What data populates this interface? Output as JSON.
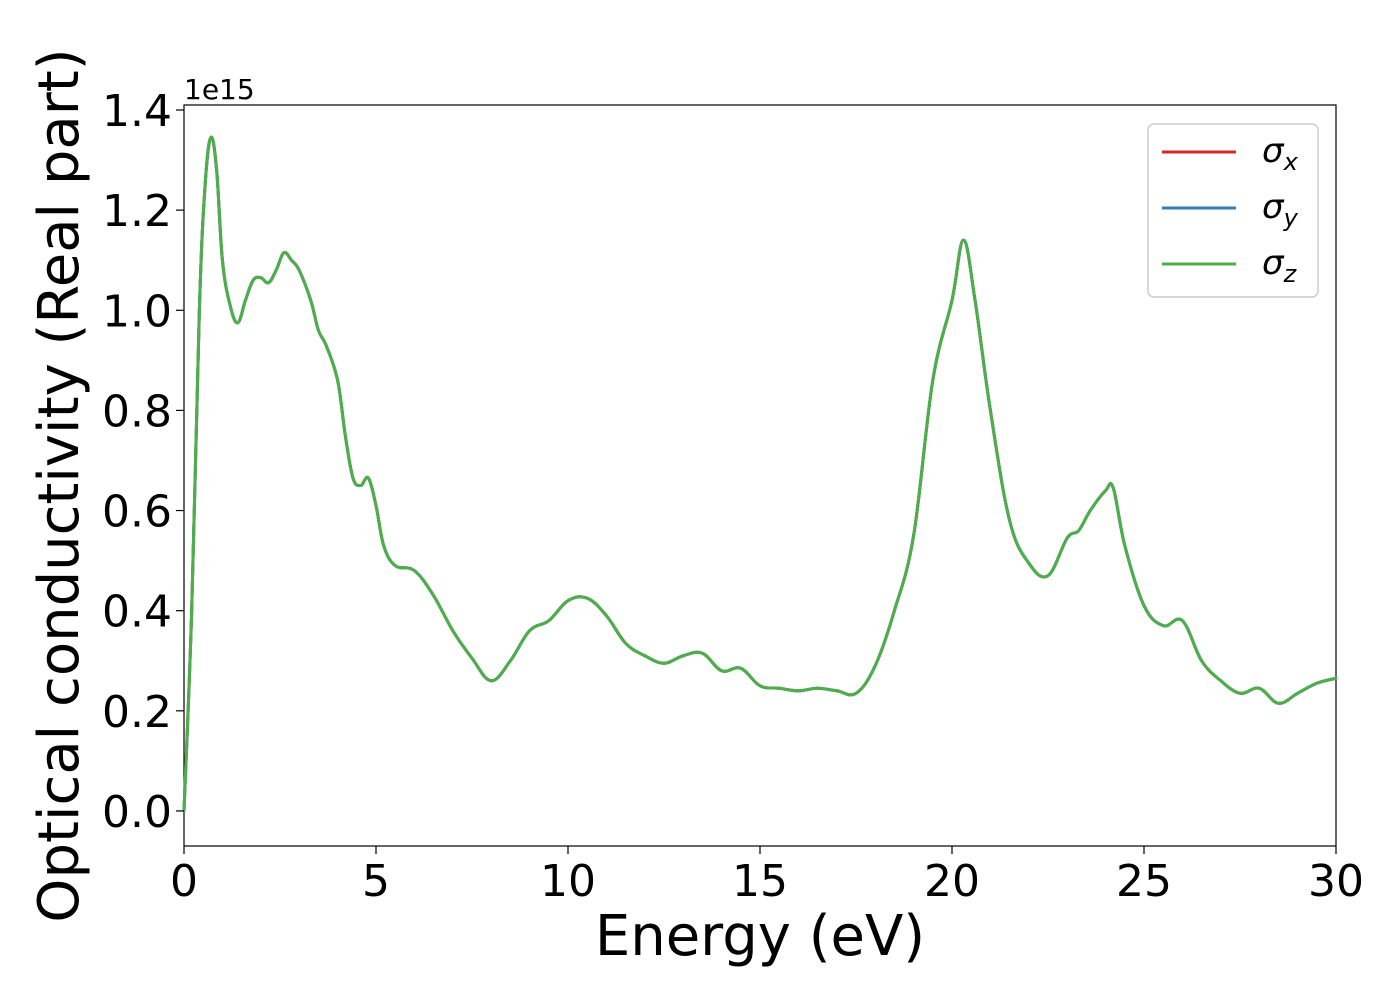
{
  "chart_data": {
    "type": "line",
    "xlabel": "Energy (eV)",
    "ylabel": "Optical conductivity (Real part)",
    "y_offset_text": "1e15",
    "y_scale_factor": 1000000000000000.0,
    "xlim": [
      0,
      30
    ],
    "ylim": [
      -0.07,
      1.41
    ],
    "x_ticks": [
      0,
      5,
      10,
      15,
      20,
      25,
      30
    ],
    "x_tick_labels": [
      "0",
      "5",
      "10",
      "15",
      "20",
      "25",
      "30"
    ],
    "y_ticks": [
      0.0,
      0.2,
      0.4,
      0.6,
      0.8,
      1.0,
      1.2,
      1.4
    ],
    "y_tick_labels": [
      "0.0",
      "0.2",
      "0.4",
      "0.6",
      "0.8",
      "1.0",
      "1.2",
      "1.4"
    ],
    "grid": false,
    "legend_position": "top-right",
    "x": [
      0,
      0.2,
      0.4,
      0.55,
      0.7,
      0.85,
      1.0,
      1.2,
      1.4,
      1.6,
      1.8,
      2.0,
      2.2,
      2.4,
      2.6,
      2.8,
      3.0,
      3.3,
      3.5,
      3.7,
      4.0,
      4.2,
      4.4,
      4.6,
      4.8,
      5.0,
      5.2,
      5.5,
      6.0,
      6.5,
      7.0,
      7.5,
      8.0,
      8.5,
      9.0,
      9.5,
      10.0,
      10.5,
      11.0,
      11.5,
      12.0,
      12.5,
      13.0,
      13.5,
      14.0,
      14.5,
      15.0,
      15.5,
      16.0,
      16.5,
      17.0,
      17.5,
      18.0,
      18.5,
      19.0,
      19.5,
      20.0,
      20.3,
      20.6,
      21.0,
      21.5,
      22.0,
      22.5,
      23.0,
      23.3,
      23.6,
      24.0,
      24.2,
      24.5,
      25.0,
      25.5,
      26.0,
      26.5,
      27.0,
      27.5,
      28.0,
      28.5,
      29.0,
      29.5,
      30.0
    ],
    "series": [
      {
        "name": "σx",
        "color": "#d62728",
        "values": [
          0.0,
          0.4,
          1.0,
          1.25,
          1.345,
          1.28,
          1.1,
          1.01,
          0.975,
          1.02,
          1.06,
          1.065,
          1.055,
          1.08,
          1.115,
          1.1,
          1.08,
          1.02,
          0.96,
          0.93,
          0.86,
          0.75,
          0.665,
          0.65,
          0.665,
          0.61,
          0.53,
          0.49,
          0.48,
          0.43,
          0.36,
          0.305,
          0.26,
          0.3,
          0.36,
          0.38,
          0.42,
          0.425,
          0.39,
          0.335,
          0.31,
          0.295,
          0.31,
          0.315,
          0.28,
          0.285,
          0.25,
          0.245,
          0.24,
          0.245,
          0.24,
          0.235,
          0.29,
          0.4,
          0.55,
          0.86,
          1.02,
          1.14,
          1.02,
          0.8,
          0.58,
          0.495,
          0.47,
          0.545,
          0.56,
          0.6,
          0.64,
          0.645,
          0.53,
          0.41,
          0.37,
          0.38,
          0.3,
          0.26,
          0.235,
          0.245,
          0.215,
          0.235,
          0.255,
          0.265
        ]
      },
      {
        "name": "σy",
        "color": "#377eb8",
        "values": [
          0.0,
          0.4,
          1.0,
          1.25,
          1.345,
          1.28,
          1.1,
          1.01,
          0.975,
          1.02,
          1.06,
          1.065,
          1.055,
          1.08,
          1.115,
          1.1,
          1.08,
          1.02,
          0.96,
          0.93,
          0.86,
          0.75,
          0.665,
          0.65,
          0.665,
          0.61,
          0.53,
          0.49,
          0.48,
          0.43,
          0.36,
          0.305,
          0.26,
          0.3,
          0.36,
          0.38,
          0.42,
          0.425,
          0.39,
          0.335,
          0.31,
          0.295,
          0.31,
          0.315,
          0.28,
          0.285,
          0.25,
          0.245,
          0.24,
          0.245,
          0.24,
          0.235,
          0.29,
          0.4,
          0.55,
          0.86,
          1.02,
          1.14,
          1.02,
          0.8,
          0.58,
          0.495,
          0.47,
          0.545,
          0.56,
          0.6,
          0.64,
          0.645,
          0.53,
          0.41,
          0.37,
          0.38,
          0.3,
          0.26,
          0.235,
          0.245,
          0.215,
          0.235,
          0.255,
          0.265
        ]
      },
      {
        "name": "σz",
        "color": "#4daf4a",
        "values": [
          0.0,
          0.4,
          1.0,
          1.25,
          1.345,
          1.28,
          1.1,
          1.01,
          0.975,
          1.02,
          1.06,
          1.065,
          1.055,
          1.08,
          1.115,
          1.1,
          1.08,
          1.02,
          0.96,
          0.93,
          0.86,
          0.75,
          0.665,
          0.65,
          0.665,
          0.61,
          0.53,
          0.49,
          0.48,
          0.43,
          0.36,
          0.305,
          0.26,
          0.3,
          0.36,
          0.38,
          0.42,
          0.425,
          0.39,
          0.335,
          0.31,
          0.295,
          0.31,
          0.315,
          0.28,
          0.285,
          0.25,
          0.245,
          0.24,
          0.245,
          0.24,
          0.235,
          0.29,
          0.4,
          0.55,
          0.86,
          1.02,
          1.14,
          1.02,
          0.8,
          0.58,
          0.495,
          0.47,
          0.545,
          0.56,
          0.6,
          0.64,
          0.645,
          0.53,
          0.41,
          0.37,
          0.38,
          0.3,
          0.26,
          0.235,
          0.245,
          0.215,
          0.235,
          0.255,
          0.265
        ]
      }
    ],
    "legend": {
      "entries": [
        {
          "symbol": "σ",
          "subscript": "x"
        },
        {
          "symbol": "σ",
          "subscript": "y"
        },
        {
          "symbol": "σ",
          "subscript": "z"
        }
      ]
    }
  }
}
